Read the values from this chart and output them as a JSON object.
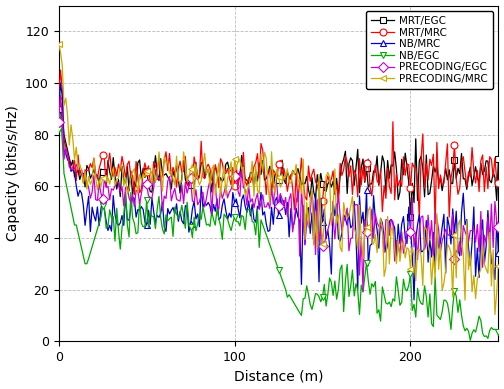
{
  "title": "",
  "xlabel": "Distance (m)",
  "ylabel": "Capacity (bits/s/Hz)",
  "xlim": [
    0,
    250
  ],
  "ylim": [
    0,
    130
  ],
  "yticks": [
    0,
    20,
    40,
    60,
    80,
    100,
    120
  ],
  "xticks": [
    0,
    100,
    200
  ],
  "series": [
    {
      "label": "MRT/EGC",
      "color": "#000000",
      "marker": "s",
      "markerfacecolor": "white",
      "markeredgecolor": "black"
    },
    {
      "label": "MRT/MRC",
      "color": "#ff0000",
      "marker": "o",
      "markerfacecolor": "white",
      "markeredgecolor": "red"
    },
    {
      "label": "NB/MRC",
      "color": "#0000cc",
      "marker": "^",
      "markerfacecolor": "white",
      "markeredgecolor": "#0000cc"
    },
    {
      "label": "NB/EGC",
      "color": "#00aa00",
      "marker": "v",
      "markerfacecolor": "white",
      "markeredgecolor": "#00aa00"
    },
    {
      "label": "PRECODING/EGC",
      "color": "#cc00cc",
      "marker": "D",
      "markerfacecolor": "white",
      "markeredgecolor": "#cc00cc"
    },
    {
      "label": "PRECODING/MRC",
      "color": "#ccaa00",
      "marker": "<",
      "markerfacecolor": "white",
      "markeredgecolor": "#ccaa00"
    }
  ],
  "grid_color": "#bbbbbb",
  "grid_linestyle": "--",
  "background_color": "#ffffff",
  "legend_fontsize": 7.5,
  "axis_fontsize": 10,
  "tick_fontsize": 9,
  "line_width": 0.9,
  "marker_size": 5,
  "marker_interval": 25
}
